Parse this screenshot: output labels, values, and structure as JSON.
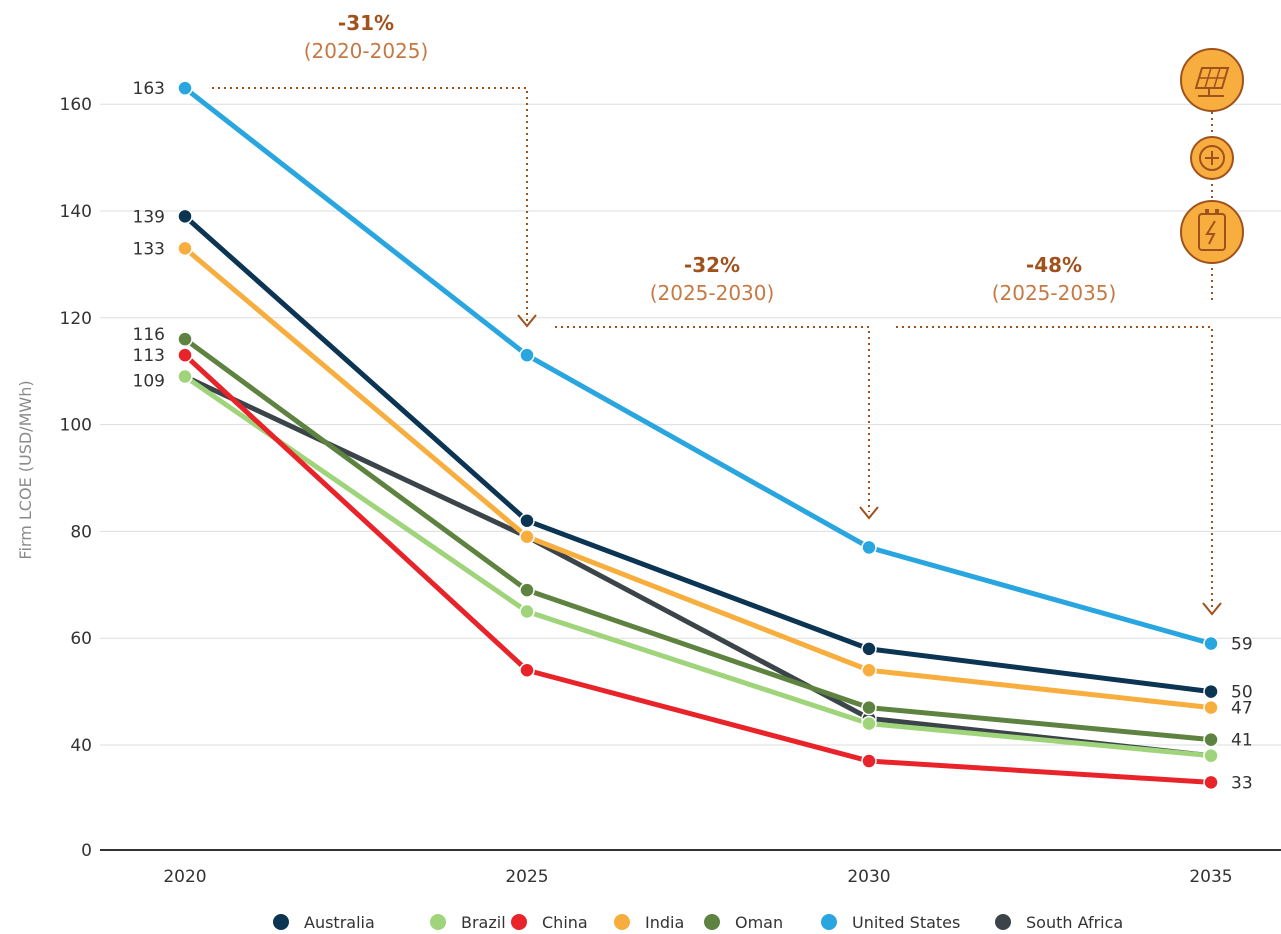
{
  "chart_data": {
    "type": "line",
    "title": "",
    "xlabel": "",
    "ylabel": "Firm LCOE (USD/MWh)",
    "x": [
      "2020",
      "2025",
      "2030",
      "2035"
    ],
    "ylim": [
      0,
      170
    ],
    "yticks": [
      "0",
      "40",
      "60",
      "80",
      "100",
      "120",
      "140",
      "160"
    ],
    "grid": true,
    "legend_position": "bottom",
    "series": [
      {
        "name": "Australia",
        "color": "#0c3553",
        "values": [
          139,
          82,
          58,
          50
        ]
      },
      {
        "name": "Brazil",
        "color": "#9fd47b",
        "values": [
          109,
          65,
          44,
          38
        ]
      },
      {
        "name": "China",
        "color": "#e8232a",
        "values": [
          113,
          54,
          37,
          33
        ]
      },
      {
        "name": "India",
        "color": "#f7ae3e",
        "values": [
          133,
          79,
          54,
          47
        ]
      },
      {
        "name": "Oman",
        "color": "#5e8240",
        "values": [
          116,
          69,
          47,
          41
        ]
      },
      {
        "name": "United States",
        "color": "#29a6df",
        "values": [
          163,
          113,
          77,
          59
        ]
      },
      {
        "name": "South Africa",
        "color": "#3a4449",
        "values": [
          109,
          79,
          45,
          38
        ]
      }
    ],
    "start_labels": [
      {
        "text": "163",
        "value": 163
      },
      {
        "text": "139",
        "value": 139
      },
      {
        "text": "133",
        "value": 133
      },
      {
        "text": "116",
        "value": 116
      },
      {
        "text": "113",
        "value": 113
      },
      {
        "text": "109",
        "value": 109
      }
    ],
    "end_labels": [
      {
        "text": "59",
        "value": 59
      },
      {
        "text": "50",
        "value": 50
      },
      {
        "text": "47",
        "value": 47
      },
      {
        "text": "41",
        "value": 41
      },
      {
        "text": "33",
        "value": 33
      }
    ],
    "annotations": [
      {
        "pct": "-31%",
        "range": "(2020-2025)"
      },
      {
        "pct": "-32%",
        "range": "(2025-2030)"
      },
      {
        "pct": "-48%",
        "range": "(2025-2035)"
      }
    ],
    "icons": [
      "solar-panel-icon",
      "plus-icon",
      "battery-icon"
    ],
    "annotation_color": "#a0521e",
    "icon_fill": "#f7ae3e"
  }
}
